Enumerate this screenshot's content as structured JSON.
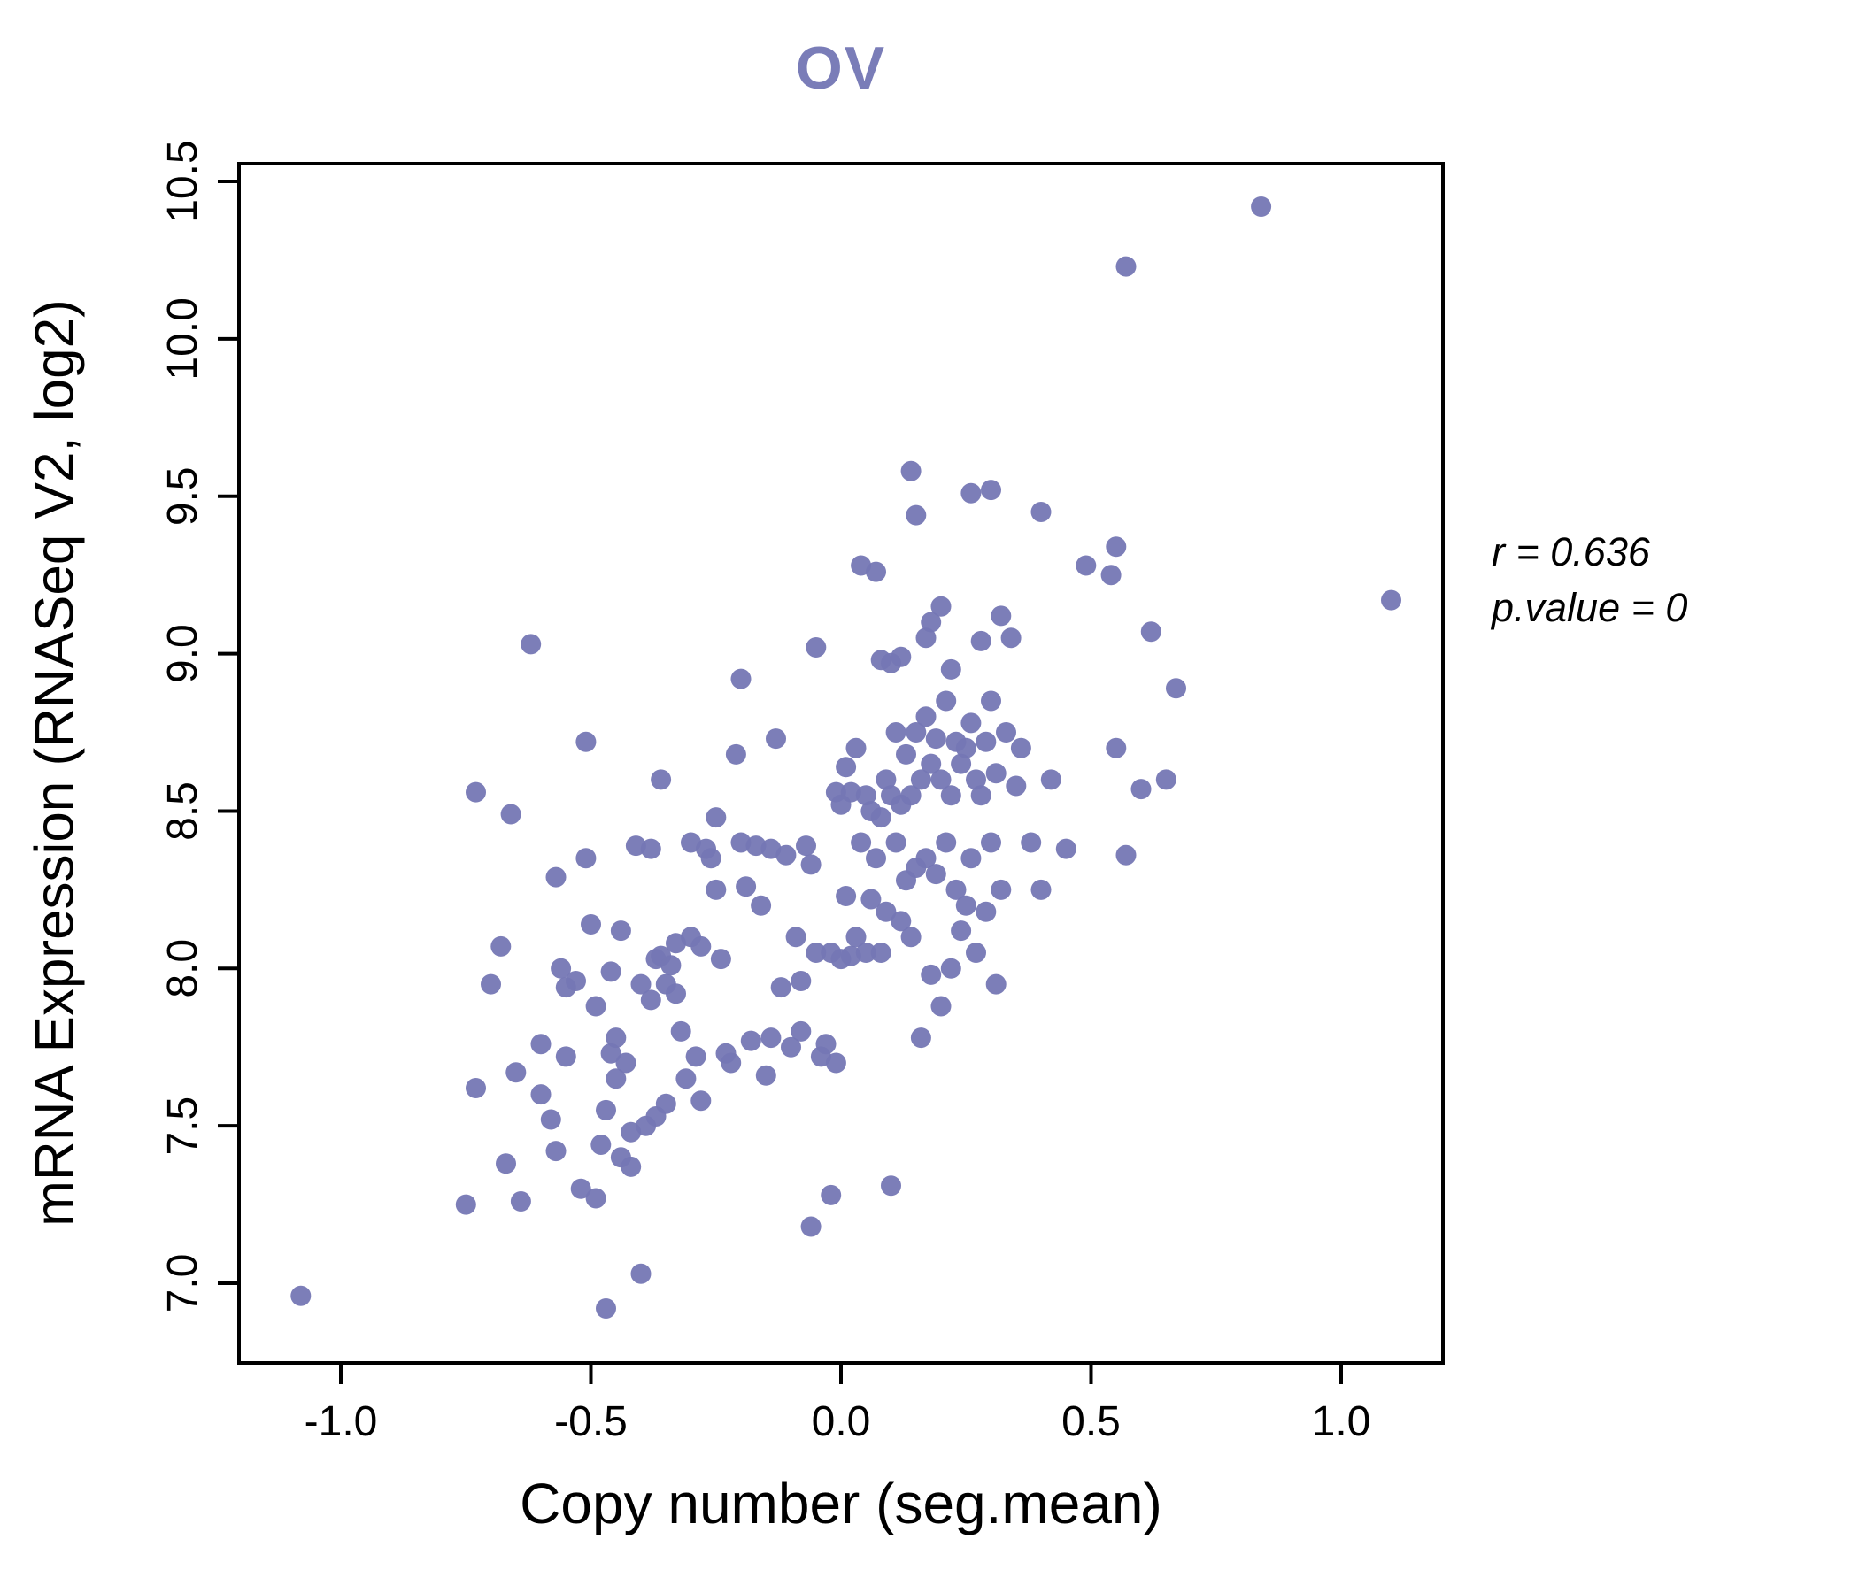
{
  "title": "OV",
  "colors": {
    "point": "#7577b4",
    "title": "#7a7db8",
    "axis": "#000000"
  },
  "annotation": {
    "line1": "r = 0.636",
    "line2": "p.value = 0"
  },
  "chart_data": {
    "type": "scatter",
    "title": "OV",
    "xlabel": "Copy number (seg.mean)",
    "ylabel": "mRNA Expression (RNASeq V2, log2)",
    "xlim": [
      -1.2,
      1.2
    ],
    "ylim": [
      6.8,
      10.6
    ],
    "grid": false,
    "legend": "none",
    "x_ticks": [
      "-1.0",
      "-0.5",
      "0.0",
      "0.5",
      "1.0"
    ],
    "y_ticks": [
      "7.0",
      "7.5",
      "8.0",
      "8.5",
      "9.0",
      "9.5",
      "10.0",
      "10.5"
    ],
    "points": [
      [
        -1.08,
        6.96
      ],
      [
        -0.75,
        7.25
      ],
      [
        -0.73,
        8.56
      ],
      [
        -0.73,
        7.62
      ],
      [
        -0.7,
        7.95
      ],
      [
        -0.68,
        8.07
      ],
      [
        -0.67,
        7.38
      ],
      [
        -0.66,
        8.49
      ],
      [
        -0.65,
        7.67
      ],
      [
        -0.64,
        7.26
      ],
      [
        -0.62,
        9.03
      ],
      [
        -0.6,
        7.6
      ],
      [
        -0.6,
        7.76
      ],
      [
        -0.58,
        7.52
      ],
      [
        -0.57,
        7.42
      ],
      [
        -0.57,
        8.29
      ],
      [
        -0.56,
        8.0
      ],
      [
        -0.55,
        7.94
      ],
      [
        -0.55,
        7.72
      ],
      [
        -0.53,
        7.96
      ],
      [
        -0.52,
        7.3
      ],
      [
        -0.51,
        8.72
      ],
      [
        -0.51,
        8.35
      ],
      [
        -0.5,
        8.14
      ],
      [
        -0.49,
        7.88
      ],
      [
        -0.49,
        7.27
      ],
      [
        -0.48,
        7.44
      ],
      [
        -0.47,
        6.92
      ],
      [
        -0.47,
        7.55
      ],
      [
        -0.46,
        7.73
      ],
      [
        -0.46,
        7.99
      ],
      [
        -0.45,
        7.78
      ],
      [
        -0.45,
        7.65
      ],
      [
        -0.44,
        8.12
      ],
      [
        -0.44,
        7.4
      ],
      [
        -0.43,
        7.7
      ],
      [
        -0.42,
        7.48
      ],
      [
        -0.42,
        7.37
      ],
      [
        -0.41,
        8.39
      ],
      [
        -0.4,
        7.03
      ],
      [
        -0.4,
        7.95
      ],
      [
        -0.39,
        7.5
      ],
      [
        -0.38,
        8.38
      ],
      [
        -0.38,
        7.9
      ],
      [
        -0.37,
        8.03
      ],
      [
        -0.37,
        7.53
      ],
      [
        -0.36,
        8.6
      ],
      [
        -0.36,
        8.04
      ],
      [
        -0.35,
        7.95
      ],
      [
        -0.35,
        7.57
      ],
      [
        -0.34,
        8.01
      ],
      [
        -0.33,
        7.92
      ],
      [
        -0.33,
        8.08
      ],
      [
        -0.32,
        7.8
      ],
      [
        -0.31,
        7.65
      ],
      [
        -0.3,
        8.4
      ],
      [
        -0.3,
        8.1
      ],
      [
        -0.29,
        7.72
      ],
      [
        -0.28,
        7.58
      ],
      [
        -0.28,
        8.07
      ],
      [
        -0.27,
        8.38
      ],
      [
        -0.26,
        8.35
      ],
      [
        -0.25,
        8.48
      ],
      [
        -0.25,
        8.25
      ],
      [
        -0.24,
        8.03
      ],
      [
        -0.23,
        7.73
      ],
      [
        -0.22,
        7.7
      ],
      [
        -0.21,
        8.68
      ],
      [
        -0.2,
        8.92
      ],
      [
        -0.2,
        8.4
      ],
      [
        -0.19,
        8.26
      ],
      [
        -0.18,
        7.77
      ],
      [
        -0.17,
        8.39
      ],
      [
        -0.16,
        8.2
      ],
      [
        -0.15,
        7.66
      ],
      [
        -0.14,
        8.38
      ],
      [
        -0.14,
        7.78
      ],
      [
        -0.13,
        8.73
      ],
      [
        -0.12,
        7.94
      ],
      [
        -0.11,
        8.36
      ],
      [
        -0.1,
        7.75
      ],
      [
        -0.09,
        8.1
      ],
      [
        -0.08,
        7.8
      ],
      [
        -0.08,
        7.96
      ],
      [
        -0.07,
        8.39
      ],
      [
        -0.06,
        7.18
      ],
      [
        -0.06,
        8.33
      ],
      [
        -0.05,
        9.02
      ],
      [
        -0.05,
        8.05
      ],
      [
        -0.04,
        7.72
      ],
      [
        -0.03,
        7.76
      ],
      [
        -0.02,
        7.28
      ],
      [
        -0.02,
        8.05
      ],
      [
        -0.01,
        8.56
      ],
      [
        -0.01,
        7.7
      ],
      [
        0.0,
        8.52
      ],
      [
        0.0,
        8.03
      ],
      [
        0.01,
        8.64
      ],
      [
        0.01,
        8.23
      ],
      [
        0.02,
        8.56
      ],
      [
        0.02,
        8.04
      ],
      [
        0.03,
        8.7
      ],
      [
        0.03,
        8.1
      ],
      [
        0.04,
        9.28
      ],
      [
        0.04,
        8.4
      ],
      [
        0.05,
        8.55
      ],
      [
        0.05,
        8.05
      ],
      [
        0.06,
        8.5
      ],
      [
        0.06,
        8.22
      ],
      [
        0.07,
        9.26
      ],
      [
        0.07,
        8.35
      ],
      [
        0.08,
        8.98
      ],
      [
        0.08,
        8.48
      ],
      [
        0.08,
        8.05
      ],
      [
        0.09,
        8.6
      ],
      [
        0.09,
        8.18
      ],
      [
        0.1,
        8.97
      ],
      [
        0.1,
        8.55
      ],
      [
        0.1,
        7.31
      ],
      [
        0.11,
        8.75
      ],
      [
        0.11,
        8.4
      ],
      [
        0.12,
        8.99
      ],
      [
        0.12,
        8.52
      ],
      [
        0.12,
        8.15
      ],
      [
        0.13,
        8.68
      ],
      [
        0.13,
        8.28
      ],
      [
        0.14,
        9.58
      ],
      [
        0.14,
        8.55
      ],
      [
        0.14,
        8.1
      ],
      [
        0.15,
        9.44
      ],
      [
        0.15,
        8.75
      ],
      [
        0.15,
        8.32
      ],
      [
        0.16,
        8.6
      ],
      [
        0.16,
        7.78
      ],
      [
        0.17,
        9.05
      ],
      [
        0.17,
        8.8
      ],
      [
        0.17,
        8.35
      ],
      [
        0.18,
        9.1
      ],
      [
        0.18,
        8.65
      ],
      [
        0.18,
        7.98
      ],
      [
        0.19,
        8.73
      ],
      [
        0.19,
        8.3
      ],
      [
        0.2,
        9.15
      ],
      [
        0.2,
        8.6
      ],
      [
        0.2,
        7.88
      ],
      [
        0.21,
        8.85
      ],
      [
        0.21,
        8.4
      ],
      [
        0.22,
        8.95
      ],
      [
        0.22,
        8.55
      ],
      [
        0.22,
        8.0
      ],
      [
        0.23,
        8.72
      ],
      [
        0.23,
        8.25
      ],
      [
        0.24,
        8.65
      ],
      [
        0.24,
        8.12
      ],
      [
        0.25,
        8.7
      ],
      [
        0.25,
        8.2
      ],
      [
        0.26,
        9.51
      ],
      [
        0.26,
        8.78
      ],
      [
        0.26,
        8.35
      ],
      [
        0.27,
        8.6
      ],
      [
        0.27,
        8.05
      ],
      [
        0.28,
        9.04
      ],
      [
        0.28,
        8.55
      ],
      [
        0.29,
        8.72
      ],
      [
        0.29,
        8.18
      ],
      [
        0.3,
        9.52
      ],
      [
        0.3,
        8.85
      ],
      [
        0.3,
        8.4
      ],
      [
        0.31,
        8.62
      ],
      [
        0.31,
        7.95
      ],
      [
        0.32,
        9.12
      ],
      [
        0.32,
        8.25
      ],
      [
        0.33,
        8.75
      ],
      [
        0.34,
        9.05
      ],
      [
        0.35,
        8.58
      ],
      [
        0.36,
        8.7
      ],
      [
        0.38,
        8.4
      ],
      [
        0.4,
        9.45
      ],
      [
        0.4,
        8.25
      ],
      [
        0.42,
        8.6
      ],
      [
        0.45,
        8.38
      ],
      [
        0.49,
        9.28
      ],
      [
        0.54,
        9.25
      ],
      [
        0.55,
        9.34
      ],
      [
        0.55,
        8.7
      ],
      [
        0.57,
        10.23
      ],
      [
        0.57,
        8.36
      ],
      [
        0.6,
        8.57
      ],
      [
        0.62,
        9.07
      ],
      [
        0.65,
        8.6
      ],
      [
        0.67,
        8.89
      ],
      [
        0.84,
        10.42
      ],
      [
        1.1,
        9.17
      ]
    ]
  }
}
